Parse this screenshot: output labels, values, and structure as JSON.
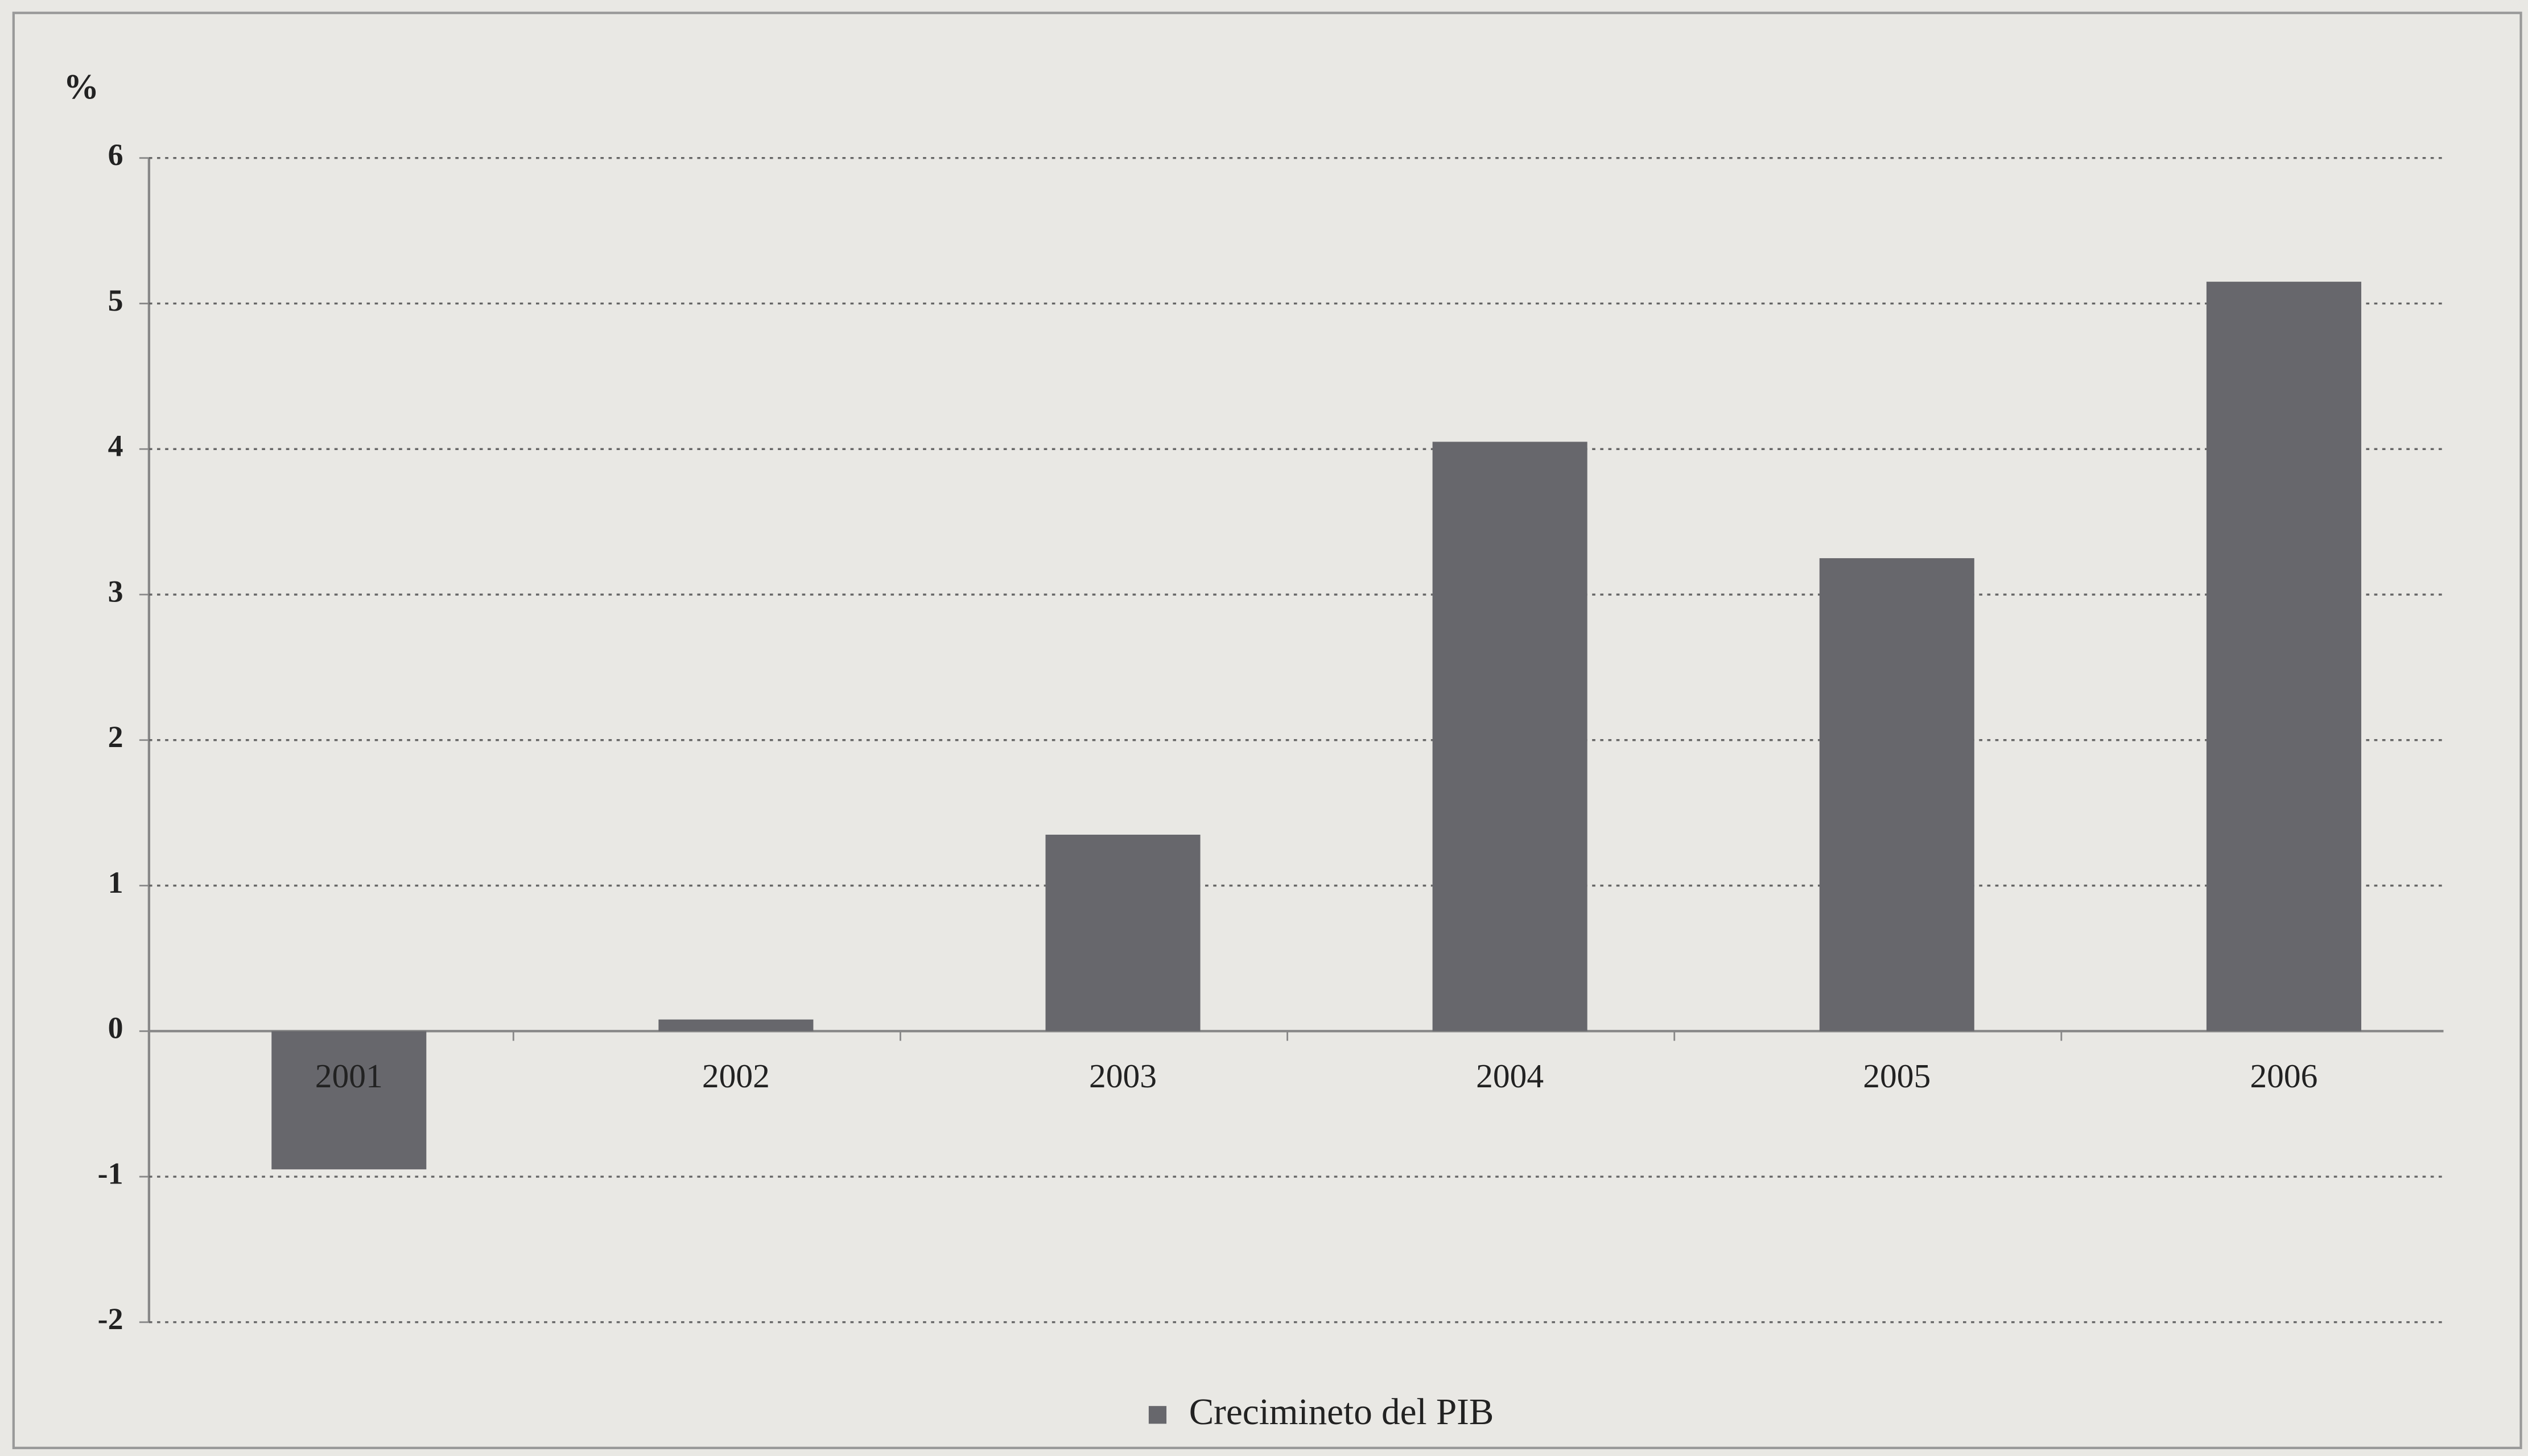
{
  "chart_data": {
    "type": "bar",
    "y_label": "%",
    "categories": [
      "2001",
      "2002",
      "2003",
      "2004",
      "2005",
      "2006"
    ],
    "series": [
      {
        "name": "Crecimineto del PIB",
        "color": "#67676c",
        "values": [
          -0.95,
          0.08,
          1.35,
          4.05,
          3.25,
          5.15
        ]
      }
    ],
    "ylim": [
      -2,
      6
    ],
    "yticks": [
      -2,
      -1,
      0,
      1,
      2,
      3,
      4,
      5,
      6
    ],
    "grid": true
  }
}
